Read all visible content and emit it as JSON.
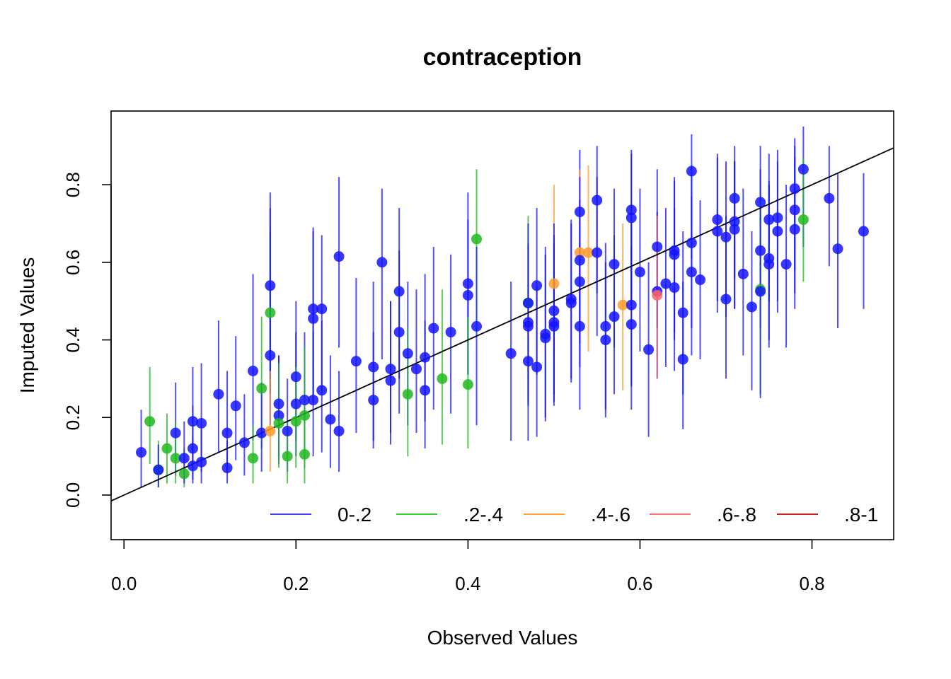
{
  "chart_data": {
    "type": "scatter",
    "title": "contraception",
    "xlabel": "Observed Values",
    "ylabel": "Imputed Values",
    "xlim": [
      -0.015,
      0.895
    ],
    "ylim": [
      -0.115,
      0.99
    ],
    "x_ticks": [
      "0.0",
      "0.2",
      "0.4",
      "0.6",
      "0.8"
    ],
    "x_tick_values": [
      0.0,
      0.2,
      0.4,
      0.6,
      0.8
    ],
    "y_ticks": [
      "0.0",
      "0.2",
      "0.4",
      "0.6",
      "0.8"
    ],
    "y_tick_values": [
      0.0,
      0.2,
      0.4,
      0.6,
      0.8
    ],
    "reference_line": {
      "slope": 1,
      "intercept": 0
    },
    "legend": {
      "placement": "bottom-right",
      "entries": [
        {
          "label": "0-.2",
          "color": "#4040FF"
        },
        {
          "label": ".2-.4",
          "color": "#33CC33"
        },
        {
          "label": ".4-.6",
          "color": "#FFA533"
        },
        {
          "label": ".6-.8",
          "color": "#FF7070"
        },
        {
          "label": ".8-1",
          "color": "#D02020"
        }
      ]
    },
    "group_colors": {
      "0-.2": "#1414FF",
      ".2-.4": "#20B820",
      ".4-.6": "#FF9A2A",
      ".6-.8": "#FF6666",
      ".8-1": "#CC1A1A"
    },
    "points": [
      {
        "x": 0.02,
        "y": 0.11,
        "lo": 0.02,
        "hi": 0.22,
        "g": "0-.2"
      },
      {
        "x": 0.03,
        "y": 0.19,
        "lo": 0.08,
        "hi": 0.33,
        "g": ".2-.4"
      },
      {
        "x": 0.04,
        "y": 0.065,
        "lo": 0.02,
        "hi": 0.14,
        "g": ".2-.4"
      },
      {
        "x": 0.04,
        "y": 0.065,
        "lo": 0.02,
        "hi": 0.13,
        "g": "0-.2"
      },
      {
        "x": 0.05,
        "y": 0.12,
        "lo": 0.03,
        "hi": 0.21,
        "g": ".2-.4"
      },
      {
        "x": 0.06,
        "y": 0.16,
        "lo": 0.05,
        "hi": 0.29,
        "g": "0-.2"
      },
      {
        "x": 0.06,
        "y": 0.095,
        "lo": 0.03,
        "hi": 0.19,
        "g": ".2-.4"
      },
      {
        "x": 0.07,
        "y": 0.055,
        "lo": 0.02,
        "hi": 0.12,
        "g": ".2-.4"
      },
      {
        "x": 0.07,
        "y": 0.095,
        "lo": 0.03,
        "hi": 0.19,
        "g": "0-.2"
      },
      {
        "x": 0.08,
        "y": 0.19,
        "lo": 0.07,
        "hi": 0.33,
        "g": "0-.2"
      },
      {
        "x": 0.08,
        "y": 0.12,
        "lo": 0.04,
        "hi": 0.23,
        "g": "0-.2"
      },
      {
        "x": 0.08,
        "y": 0.075,
        "lo": 0.03,
        "hi": 0.15,
        "g": "0-.2"
      },
      {
        "x": 0.09,
        "y": 0.185,
        "lo": 0.06,
        "hi": 0.34,
        "g": "0-.2"
      },
      {
        "x": 0.09,
        "y": 0.085,
        "lo": 0.03,
        "hi": 0.17,
        "g": "0-.2"
      },
      {
        "x": 0.11,
        "y": 0.26,
        "lo": 0.11,
        "hi": 0.45,
        "g": "0-.2"
      },
      {
        "x": 0.12,
        "y": 0.16,
        "lo": 0.06,
        "hi": 0.32,
        "g": "0-.2"
      },
      {
        "x": 0.12,
        "y": 0.07,
        "lo": 0.03,
        "hi": 0.14,
        "g": "0-.2"
      },
      {
        "x": 0.13,
        "y": 0.23,
        "lo": 0.09,
        "hi": 0.41,
        "g": "0-.2"
      },
      {
        "x": 0.14,
        "y": 0.135,
        "lo": 0.05,
        "hi": 0.26,
        "g": "0-.2"
      },
      {
        "x": 0.15,
        "y": 0.32,
        "lo": 0.14,
        "hi": 0.57,
        "g": "0-.2"
      },
      {
        "x": 0.15,
        "y": 0.095,
        "lo": 0.03,
        "hi": 0.18,
        "g": ".2-.4"
      },
      {
        "x": 0.16,
        "y": 0.275,
        "lo": 0.12,
        "hi": 0.46,
        "g": ".2-.4"
      },
      {
        "x": 0.16,
        "y": 0.16,
        "lo": 0.06,
        "hi": 0.29,
        "g": "0-.2"
      },
      {
        "x": 0.17,
        "y": 0.47,
        "lo": 0.26,
        "hi": 0.68,
        "g": ".2-.4"
      },
      {
        "x": 0.17,
        "y": 0.54,
        "lo": 0.3,
        "hi": 0.78,
        "g": "0-.2"
      },
      {
        "x": 0.17,
        "y": 0.36,
        "lo": 0.18,
        "hi": 0.74,
        "g": "0-.2"
      },
      {
        "x": 0.17,
        "y": 0.165,
        "lo": 0.06,
        "hi": 0.32,
        "g": ".4-.6"
      },
      {
        "x": 0.18,
        "y": 0.235,
        "lo": 0.1,
        "hi": 0.36,
        "g": "0-.2"
      },
      {
        "x": 0.18,
        "y": 0.205,
        "lo": 0.08,
        "hi": 0.36,
        "g": "0-.2"
      },
      {
        "x": 0.18,
        "y": 0.185,
        "lo": 0.07,
        "hi": 0.34,
        "g": ".2-.4"
      },
      {
        "x": 0.19,
        "y": 0.165,
        "lo": 0.06,
        "hi": 0.3,
        "g": "0-.2"
      },
      {
        "x": 0.19,
        "y": 0.1,
        "lo": 0.03,
        "hi": 0.19,
        "g": ".2-.4"
      },
      {
        "x": 0.2,
        "y": 0.305,
        "lo": 0.14,
        "hi": 0.5,
        "g": "0-.2"
      },
      {
        "x": 0.2,
        "y": 0.235,
        "lo": 0.1,
        "hi": 0.42,
        "g": "0-.2"
      },
      {
        "x": 0.2,
        "y": 0.19,
        "lo": 0.07,
        "hi": 0.33,
        "g": ".2-.4"
      },
      {
        "x": 0.21,
        "y": 0.245,
        "lo": 0.1,
        "hi": 0.42,
        "g": "0-.2"
      },
      {
        "x": 0.21,
        "y": 0.205,
        "lo": 0.07,
        "hi": 0.38,
        "g": ".2-.4"
      },
      {
        "x": 0.21,
        "y": 0.105,
        "lo": 0.03,
        "hi": 0.2,
        "g": ".2-.4"
      },
      {
        "x": 0.22,
        "y": 0.48,
        "lo": 0.26,
        "hi": 0.69,
        "g": "0-.2"
      },
      {
        "x": 0.22,
        "y": 0.455,
        "lo": 0.24,
        "hi": 0.68,
        "g": "0-.2"
      },
      {
        "x": 0.22,
        "y": 0.245,
        "lo": 0.1,
        "hi": 0.42,
        "g": "0-.2"
      },
      {
        "x": 0.23,
        "y": 0.48,
        "lo": 0.27,
        "hi": 0.67,
        "g": "0-.2"
      },
      {
        "x": 0.23,
        "y": 0.27,
        "lo": 0.11,
        "hi": 0.45,
        "g": "0-.2"
      },
      {
        "x": 0.24,
        "y": 0.195,
        "lo": 0.07,
        "hi": 0.36,
        "g": "0-.2"
      },
      {
        "x": 0.25,
        "y": 0.615,
        "lo": 0.38,
        "hi": 0.82,
        "g": "0-.2"
      },
      {
        "x": 0.25,
        "y": 0.165,
        "lo": 0.06,
        "hi": 0.32,
        "g": "0-.2"
      },
      {
        "x": 0.27,
        "y": 0.345,
        "lo": 0.16,
        "hi": 0.56,
        "g": "0-.2"
      },
      {
        "x": 0.29,
        "y": 0.33,
        "lo": 0.14,
        "hi": 0.55,
        "g": "0-.2"
      },
      {
        "x": 0.29,
        "y": 0.245,
        "lo": 0.12,
        "hi": 0.42,
        "g": "0-.2"
      },
      {
        "x": 0.3,
        "y": 0.6,
        "lo": 0.35,
        "hi": 0.79,
        "g": "0-.2"
      },
      {
        "x": 0.31,
        "y": 0.325,
        "lo": 0.16,
        "hi": 0.5,
        "g": "0-.2"
      },
      {
        "x": 0.31,
        "y": 0.295,
        "lo": 0.13,
        "hi": 0.5,
        "g": "0-.2"
      },
      {
        "x": 0.32,
        "y": 0.525,
        "lo": 0.3,
        "hi": 0.74,
        "g": "0-.2"
      },
      {
        "x": 0.32,
        "y": 0.42,
        "lo": 0.21,
        "hi": 0.63,
        "g": "0-.2"
      },
      {
        "x": 0.33,
        "y": 0.365,
        "lo": 0.18,
        "hi": 0.55,
        "g": "0-.2"
      },
      {
        "x": 0.33,
        "y": 0.26,
        "lo": 0.1,
        "hi": 0.43,
        "g": ".2-.4"
      },
      {
        "x": 0.34,
        "y": 0.325,
        "lo": 0.16,
        "hi": 0.53,
        "g": "0-.2"
      },
      {
        "x": 0.35,
        "y": 0.355,
        "lo": 0.19,
        "hi": 0.57,
        "g": "0-.2"
      },
      {
        "x": 0.35,
        "y": 0.27,
        "lo": 0.12,
        "hi": 0.45,
        "g": "0-.2"
      },
      {
        "x": 0.36,
        "y": 0.43,
        "lo": 0.22,
        "hi": 0.64,
        "g": "0-.2"
      },
      {
        "x": 0.37,
        "y": 0.3,
        "lo": 0.13,
        "hi": 0.53,
        "g": ".2-.4"
      },
      {
        "x": 0.38,
        "y": 0.42,
        "lo": 0.21,
        "hi": 0.62,
        "g": "0-.2"
      },
      {
        "x": 0.4,
        "y": 0.545,
        "lo": 0.31,
        "hi": 0.78,
        "g": "0-.2"
      },
      {
        "x": 0.4,
        "y": 0.515,
        "lo": 0.31,
        "hi": 0.71,
        "g": "0-.2"
      },
      {
        "x": 0.4,
        "y": 0.285,
        "lo": 0.12,
        "hi": 0.46,
        "g": ".2-.4"
      },
      {
        "x": 0.41,
        "y": 0.66,
        "lo": 0.42,
        "hi": 0.84,
        "g": ".2-.4"
      },
      {
        "x": 0.41,
        "y": 0.435,
        "lo": 0.18,
        "hi": 0.64,
        "g": "0-.2"
      },
      {
        "x": 0.45,
        "y": 0.365,
        "lo": 0.14,
        "hi": 0.55,
        "g": "0-.2"
      },
      {
        "x": 0.47,
        "y": 0.495,
        "lo": 0.3,
        "hi": 0.72,
        "g": ".2-.4"
      },
      {
        "x": 0.47,
        "y": 0.495,
        "lo": 0.28,
        "hi": 0.7,
        "g": "0-.2"
      },
      {
        "x": 0.47,
        "y": 0.445,
        "lo": 0.24,
        "hi": 0.65,
        "g": "0-.2"
      },
      {
        "x": 0.47,
        "y": 0.435,
        "lo": 0.23,
        "hi": 0.64,
        "g": "0-.2"
      },
      {
        "x": 0.47,
        "y": 0.345,
        "lo": 0.14,
        "hi": 0.55,
        "g": "0-.2"
      },
      {
        "x": 0.48,
        "y": 0.54,
        "lo": 0.31,
        "hi": 0.74,
        "g": "0-.2"
      },
      {
        "x": 0.48,
        "y": 0.33,
        "lo": 0.15,
        "hi": 0.53,
        "g": "0-.2"
      },
      {
        "x": 0.49,
        "y": 0.415,
        "lo": 0.2,
        "hi": 0.64,
        "g": "0-.2"
      },
      {
        "x": 0.49,
        "y": 0.405,
        "lo": 0.19,
        "hi": 0.62,
        "g": "0-.2"
      },
      {
        "x": 0.5,
        "y": 0.545,
        "lo": 0.36,
        "hi": 0.8,
        "g": ".4-.6"
      },
      {
        "x": 0.5,
        "y": 0.475,
        "lo": 0.26,
        "hi": 0.67,
        "g": "0-.2"
      },
      {
        "x": 0.5,
        "y": 0.445,
        "lo": 0.23,
        "hi": 0.7,
        "g": "0-.2"
      },
      {
        "x": 0.5,
        "y": 0.435,
        "lo": 0.24,
        "hi": 0.65,
        "g": "0-.2"
      },
      {
        "x": 0.52,
        "y": 0.505,
        "lo": 0.29,
        "hi": 0.71,
        "g": "0-.2"
      },
      {
        "x": 0.52,
        "y": 0.495,
        "lo": 0.3,
        "hi": 0.7,
        "g": "0-.2"
      },
      {
        "x": 0.53,
        "y": 0.73,
        "lo": 0.5,
        "hi": 0.89,
        "g": "0-.2"
      },
      {
        "x": 0.53,
        "y": 0.625,
        "lo": 0.4,
        "hi": 0.84,
        "g": ".4-.6"
      },
      {
        "x": 0.53,
        "y": 0.605,
        "lo": 0.39,
        "hi": 0.82,
        "g": "0-.2"
      },
      {
        "x": 0.53,
        "y": 0.55,
        "lo": 0.33,
        "hi": 0.76,
        "g": "0-.2"
      },
      {
        "x": 0.53,
        "y": 0.435,
        "lo": 0.22,
        "hi": 0.65,
        "g": "0-.2"
      },
      {
        "x": 0.54,
        "y": 0.625,
        "lo": 0.37,
        "hi": 0.85,
        "g": ".4-.6"
      },
      {
        "x": 0.55,
        "y": 0.76,
        "lo": 0.52,
        "hi": 0.9,
        "g": "0-.2"
      },
      {
        "x": 0.55,
        "y": 0.625,
        "lo": 0.41,
        "hi": 0.82,
        "g": "0-.2"
      },
      {
        "x": 0.56,
        "y": 0.435,
        "lo": 0.22,
        "hi": 0.65,
        "g": "0-.2"
      },
      {
        "x": 0.56,
        "y": 0.4,
        "lo": 0.2,
        "hi": 0.6,
        "g": "0-.2"
      },
      {
        "x": 0.57,
        "y": 0.595,
        "lo": 0.38,
        "hi": 0.79,
        "g": "0-.2"
      },
      {
        "x": 0.57,
        "y": 0.46,
        "lo": 0.26,
        "hi": 0.67,
        "g": "0-.2"
      },
      {
        "x": 0.58,
        "y": 0.49,
        "lo": 0.27,
        "hi": 0.7,
        "g": ".4-.6"
      },
      {
        "x": 0.59,
        "y": 0.735,
        "lo": 0.49,
        "hi": 0.89,
        "g": "0-.2"
      },
      {
        "x": 0.59,
        "y": 0.715,
        "lo": 0.5,
        "hi": 0.88,
        "g": "0-.2"
      },
      {
        "x": 0.59,
        "y": 0.49,
        "lo": 0.28,
        "hi": 0.7,
        "g": "0-.2"
      },
      {
        "x": 0.59,
        "y": 0.44,
        "lo": 0.22,
        "hi": 0.64,
        "g": "0-.2"
      },
      {
        "x": 0.6,
        "y": 0.575,
        "lo": 0.37,
        "hi": 0.79,
        "g": "0-.2"
      },
      {
        "x": 0.61,
        "y": 0.375,
        "lo": 0.15,
        "hi": 0.6,
        "g": "0-.2"
      },
      {
        "x": 0.62,
        "y": 0.64,
        "lo": 0.43,
        "hi": 0.84,
        "g": "0-.2"
      },
      {
        "x": 0.62,
        "y": 0.525,
        "lo": 0.3,
        "hi": 0.73,
        "g": "0-.2"
      },
      {
        "x": 0.62,
        "y": 0.515,
        "lo": 0.3,
        "hi": 0.72,
        "g": ".6-.8"
      },
      {
        "x": 0.63,
        "y": 0.545,
        "lo": 0.33,
        "hi": 0.74,
        "g": "0-.2"
      },
      {
        "x": 0.64,
        "y": 0.63,
        "lo": 0.42,
        "hi": 0.81,
        "g": "0-.2"
      },
      {
        "x": 0.64,
        "y": 0.62,
        "lo": 0.4,
        "hi": 0.82,
        "g": "0-.2"
      },
      {
        "x": 0.64,
        "y": 0.535,
        "lo": 0.32,
        "hi": 0.74,
        "g": "0-.2"
      },
      {
        "x": 0.65,
        "y": 0.47,
        "lo": 0.26,
        "hi": 0.68,
        "g": "0-.2"
      },
      {
        "x": 0.65,
        "y": 0.35,
        "lo": 0.17,
        "hi": 0.55,
        "g": "0-.2"
      },
      {
        "x": 0.66,
        "y": 0.835,
        "lo": 0.61,
        "hi": 0.93,
        "g": "0-.2"
      },
      {
        "x": 0.66,
        "y": 0.65,
        "lo": 0.43,
        "hi": 0.85,
        "g": "0-.2"
      },
      {
        "x": 0.66,
        "y": 0.575,
        "lo": 0.36,
        "hi": 0.77,
        "g": "0-.2"
      },
      {
        "x": 0.67,
        "y": 0.555,
        "lo": 0.35,
        "hi": 0.76,
        "g": "0-.2"
      },
      {
        "x": 0.69,
        "y": 0.71,
        "lo": 0.5,
        "hi": 0.88,
        "g": "0-.2"
      },
      {
        "x": 0.69,
        "y": 0.68,
        "lo": 0.47,
        "hi": 0.87,
        "g": "0-.2"
      },
      {
        "x": 0.7,
        "y": 0.665,
        "lo": 0.46,
        "hi": 0.86,
        "g": "0-.2"
      },
      {
        "x": 0.7,
        "y": 0.505,
        "lo": 0.3,
        "hi": 0.72,
        "g": "0-.2"
      },
      {
        "x": 0.71,
        "y": 0.765,
        "lo": 0.56,
        "hi": 0.9,
        "g": "0-.2"
      },
      {
        "x": 0.71,
        "y": 0.705,
        "lo": 0.48,
        "hi": 0.86,
        "g": "0-.2"
      },
      {
        "x": 0.71,
        "y": 0.685,
        "lo": 0.48,
        "hi": 0.86,
        "g": "0-.2"
      },
      {
        "x": 0.72,
        "y": 0.57,
        "lo": 0.36,
        "hi": 0.79,
        "g": "0-.2"
      },
      {
        "x": 0.73,
        "y": 0.485,
        "lo": 0.27,
        "hi": 0.68,
        "g": "0-.2"
      },
      {
        "x": 0.74,
        "y": 0.755,
        "lo": 0.54,
        "hi": 0.9,
        "g": "0-.2"
      },
      {
        "x": 0.74,
        "y": 0.63,
        "lo": 0.43,
        "hi": 0.84,
        "g": "0-.2"
      },
      {
        "x": 0.74,
        "y": 0.53,
        "lo": 0.26,
        "hi": 0.76,
        "g": ".2-.4"
      },
      {
        "x": 0.74,
        "y": 0.525,
        "lo": 0.25,
        "hi": 0.74,
        "g": "0-.2"
      },
      {
        "x": 0.75,
        "y": 0.71,
        "lo": 0.5,
        "hi": 0.88,
        "g": "0-.2"
      },
      {
        "x": 0.75,
        "y": 0.61,
        "lo": 0.4,
        "hi": 0.81,
        "g": "0-.2"
      },
      {
        "x": 0.75,
        "y": 0.595,
        "lo": 0.38,
        "hi": 0.8,
        "g": "0-.2"
      },
      {
        "x": 0.76,
        "y": 0.715,
        "lo": 0.5,
        "hi": 0.89,
        "g": "0-.2"
      },
      {
        "x": 0.76,
        "y": 0.68,
        "lo": 0.47,
        "hi": 0.86,
        "g": "0-.2"
      },
      {
        "x": 0.77,
        "y": 0.595,
        "lo": 0.38,
        "hi": 0.8,
        "g": "0-.2"
      },
      {
        "x": 0.78,
        "y": 0.79,
        "lo": 0.58,
        "hi": 0.92,
        "g": "0-.2"
      },
      {
        "x": 0.78,
        "y": 0.735,
        "lo": 0.52,
        "hi": 0.9,
        "g": "0-.2"
      },
      {
        "x": 0.78,
        "y": 0.685,
        "lo": 0.48,
        "hi": 0.87,
        "g": "0-.2"
      },
      {
        "x": 0.79,
        "y": 0.84,
        "lo": 0.64,
        "hi": 0.95,
        "g": "0-.2"
      },
      {
        "x": 0.79,
        "y": 0.71,
        "lo": 0.55,
        "hi": 0.87,
        "g": ".2-.4"
      },
      {
        "x": 0.82,
        "y": 0.765,
        "lo": 0.59,
        "hi": 0.9,
        "g": "0-.2"
      },
      {
        "x": 0.83,
        "y": 0.635,
        "lo": 0.43,
        "hi": 0.83,
        "g": "0-.2"
      },
      {
        "x": 0.86,
        "y": 0.68,
        "lo": 0.48,
        "hi": 0.83,
        "g": "0-.2"
      }
    ]
  }
}
